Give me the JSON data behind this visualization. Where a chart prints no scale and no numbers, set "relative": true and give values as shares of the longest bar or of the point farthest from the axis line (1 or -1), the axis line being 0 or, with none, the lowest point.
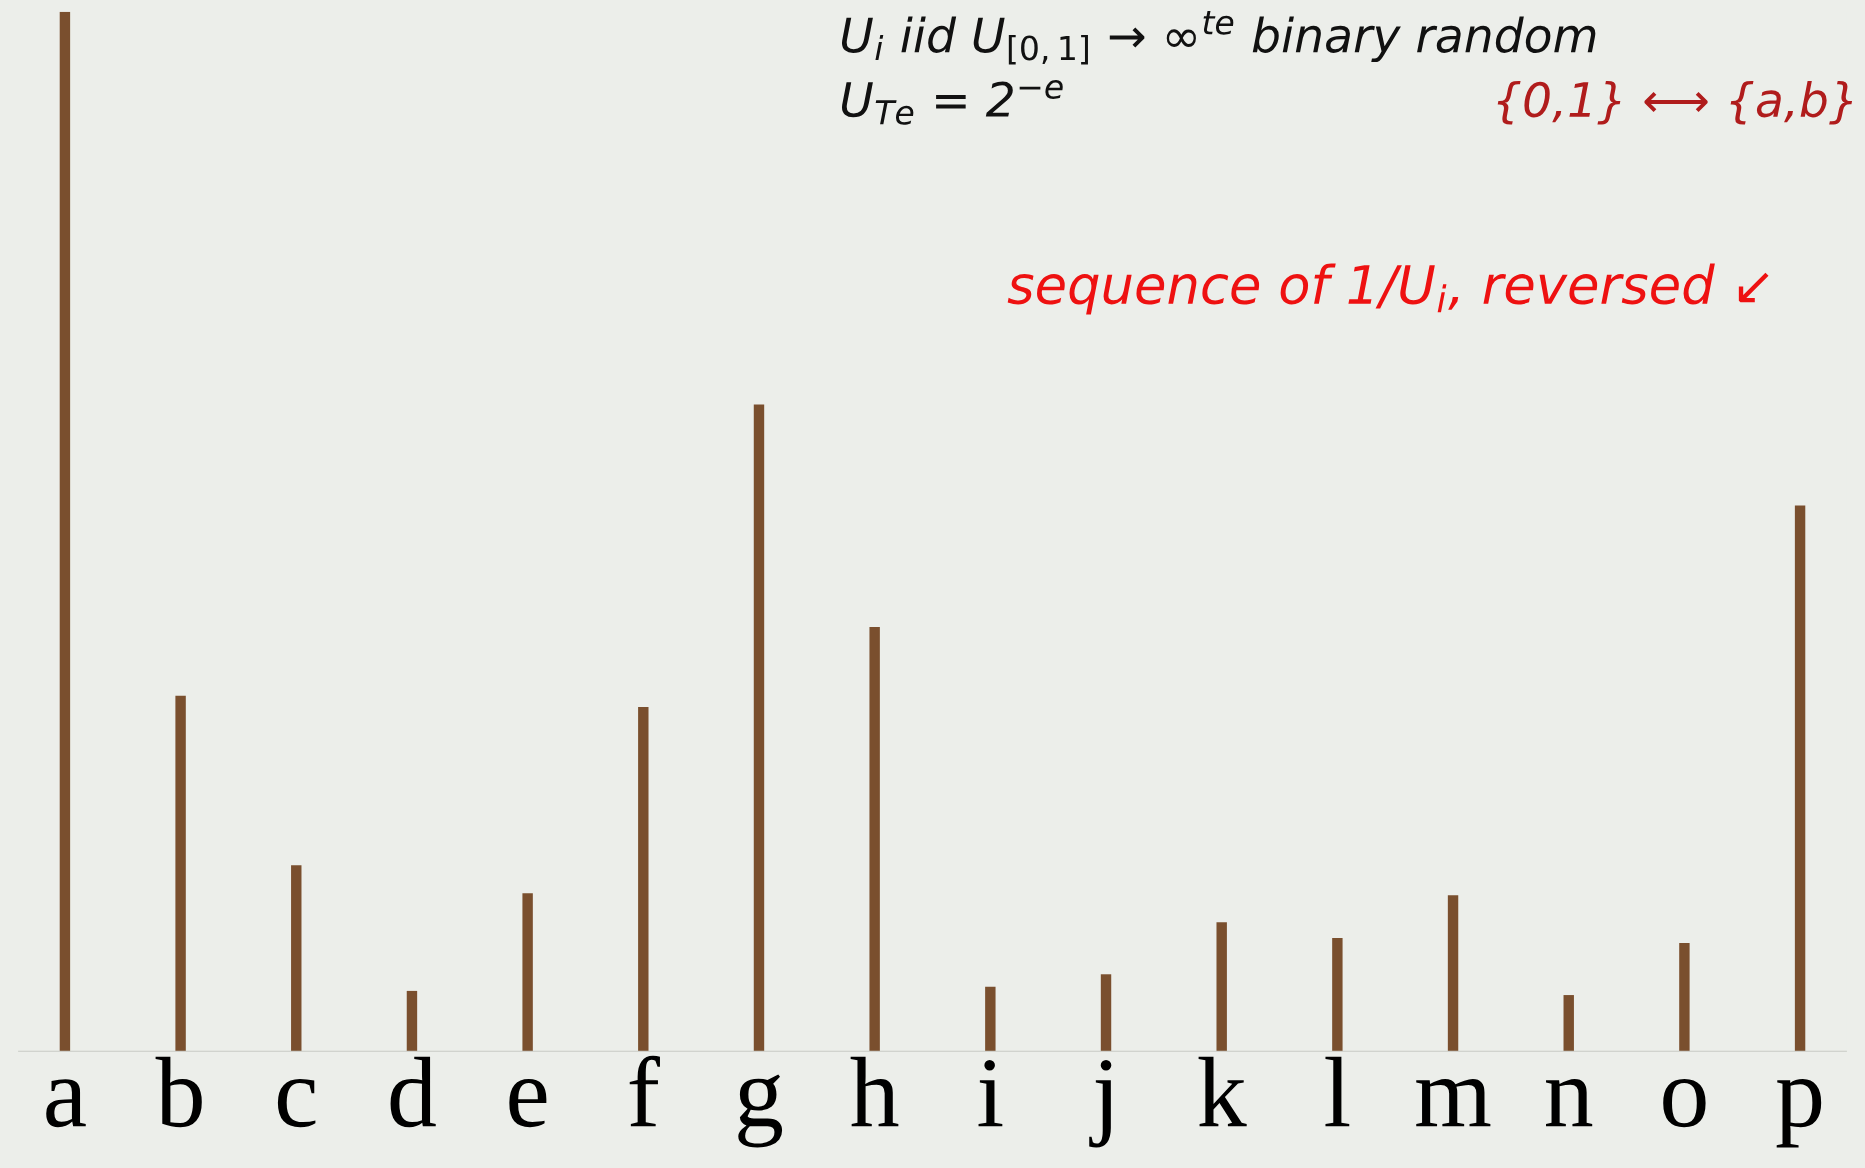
{
  "chart_data": {
    "type": "bar",
    "relative": true,
    "categories": [
      "a",
      "b",
      "c",
      "d",
      "e",
      "f",
      "g",
      "h",
      "i",
      "j",
      "k",
      "l",
      "m",
      "n",
      "o",
      "p"
    ],
    "values": [
      1,
      0.342,
      0.179,
      0.058,
      0.152,
      0.331,
      0.622,
      0.408,
      0.062,
      0.074,
      0.124,
      0.109,
      0.15,
      0.054,
      0.104,
      0.525
    ],
    "color": "#7a4f2e",
    "grid": false,
    "legend": false,
    "annotations": [
      "U$_{i}$ iid U$_{[0,1]}$ → ∞$^{te}$ binary random",
      "U$_{Te}$ = 2$^{−e}$",
      "{0,1} ⟷ {a,b}",
      "sequence of 1/U$_{i}$, reversed ↙"
    ]
  }
}
